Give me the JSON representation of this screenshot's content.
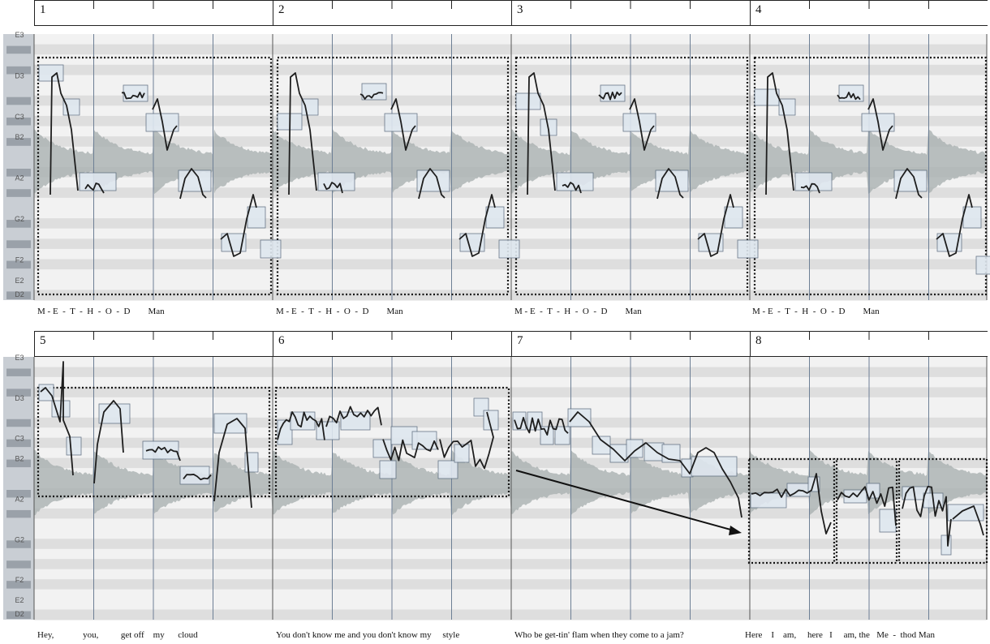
{
  "pitch_labels": [
    "E3",
    "D3",
    "C3",
    "B2",
    "A2",
    "G2",
    "F2",
    "E2",
    "D2"
  ],
  "systems": [
    {
      "bars": [
        "1",
        "2",
        "3",
        "4"
      ],
      "lyrics": [
        "M - E  -  T  -  H  -  O  -  D        Man",
        "M - E  -  T  -  H  -  O  -  D        Man",
        "M - E  -  T  -  H  -  O  -  D        Man",
        "M - E  -  T  -  H  -  O  -  D        Man"
      ]
    },
    {
      "bars": [
        "5",
        "6",
        "7",
        "8"
      ],
      "lyrics": [
        "Hey,             you,          get off    my      cloud",
        "You don't know me and you don't know my     style",
        "Who be get-tin' flam when they come to a jam?",
        "Here    I    am,     here   I     am, the   Me  -  thod Man"
      ]
    }
  ],
  "colors": {
    "background_band_light": "#f2f2f2",
    "background_band_dark": "#dedede",
    "waveform": "#a9b0b0",
    "note_box_fill": "#dfe7ef",
    "note_box_stroke": "#5b6b7c",
    "pitch_curve": "#1e1e1e",
    "frame": "#111111"
  }
}
